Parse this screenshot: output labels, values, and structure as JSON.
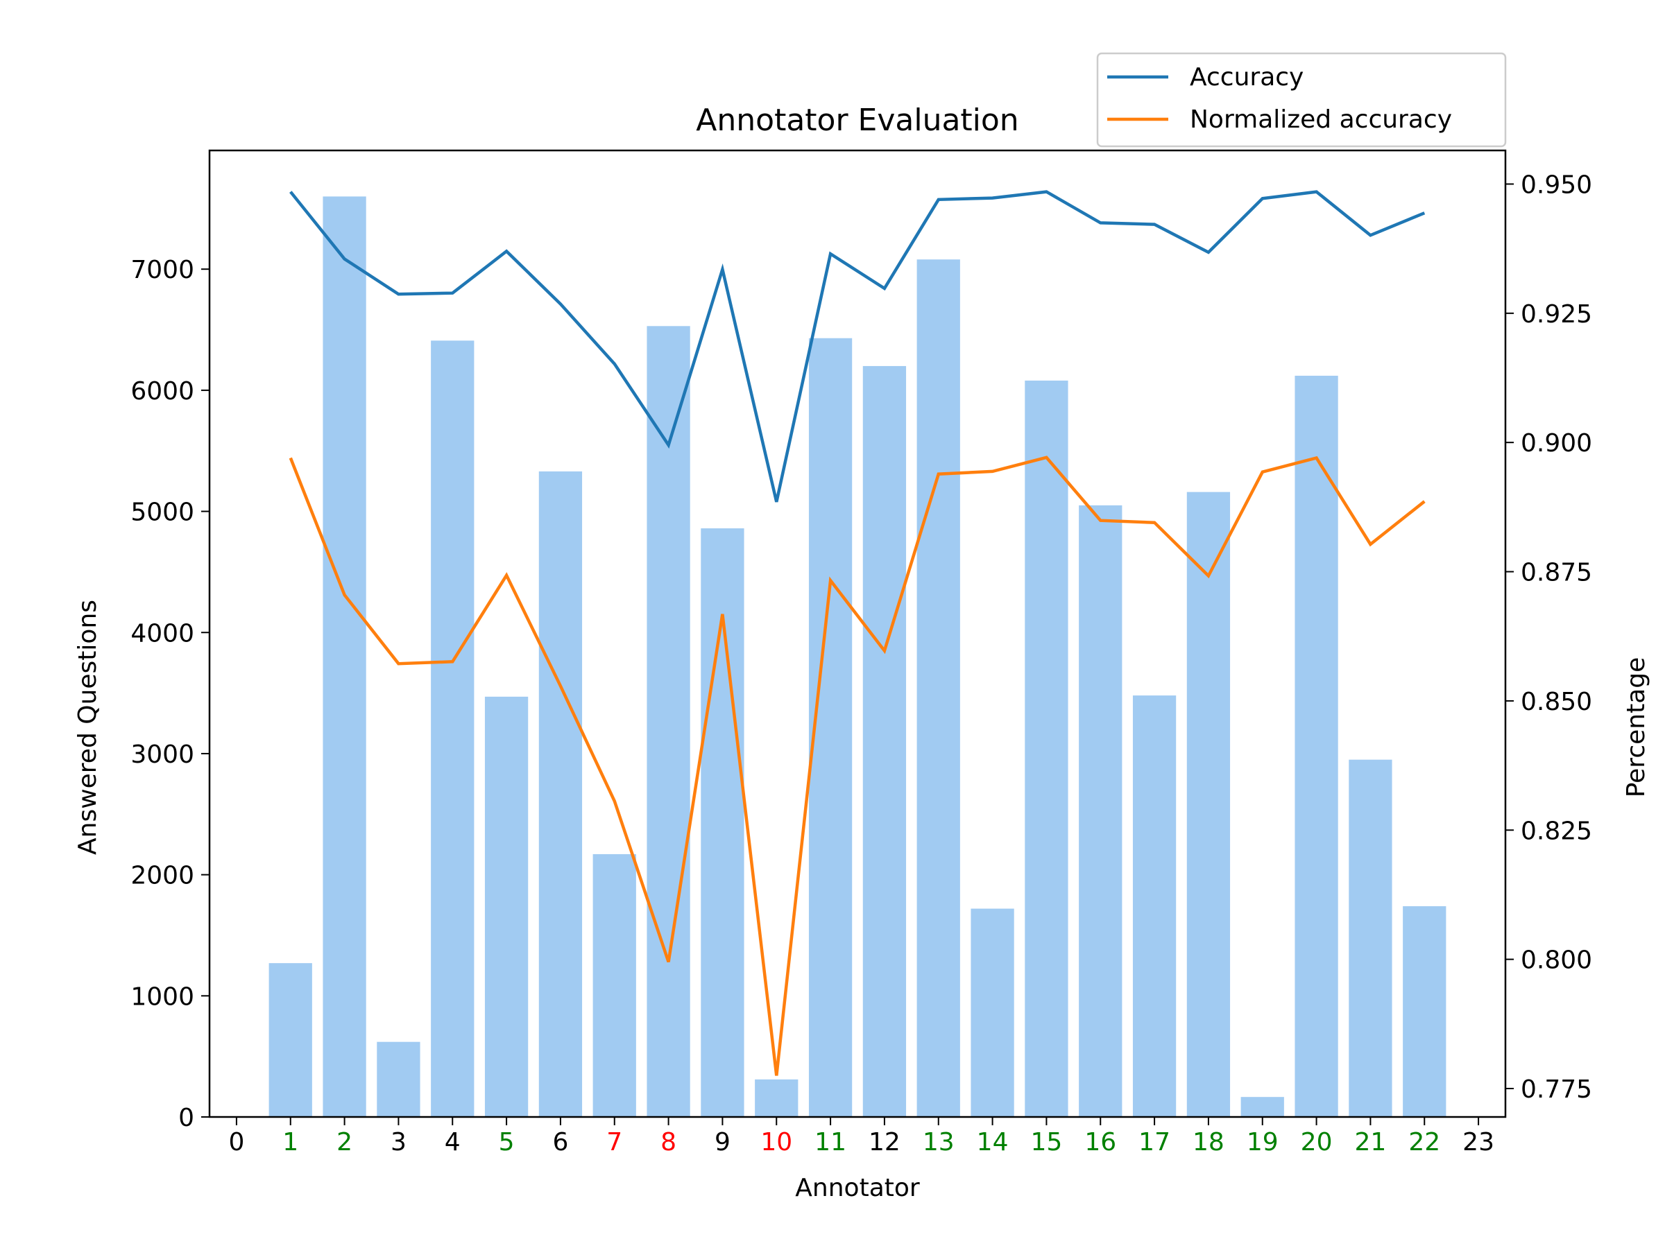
{
  "chart_data": {
    "type": "bar",
    "title": "Annotator Evaluation",
    "xlabel": "Annotator",
    "ylabel": "Answered Questions",
    "y2label": "Percentage",
    "xlim": [
      -0.5,
      23.5
    ],
    "ylim": [
      0,
      7980
    ],
    "y2lim": [
      0.7695,
      0.9565
    ],
    "x_ticks": [
      {
        "label": "0",
        "color": "#000000"
      },
      {
        "label": "1",
        "color": "#008000"
      },
      {
        "label": "2",
        "color": "#008000"
      },
      {
        "label": "3",
        "color": "#000000"
      },
      {
        "label": "4",
        "color": "#000000"
      },
      {
        "label": "5",
        "color": "#008000"
      },
      {
        "label": "6",
        "color": "#000000"
      },
      {
        "label": "7",
        "color": "#ff0000"
      },
      {
        "label": "8",
        "color": "#ff0000"
      },
      {
        "label": "9",
        "color": "#000000"
      },
      {
        "label": "10",
        "color": "#ff0000"
      },
      {
        "label": "11",
        "color": "#008000"
      },
      {
        "label": "12",
        "color": "#000000"
      },
      {
        "label": "13",
        "color": "#008000"
      },
      {
        "label": "14",
        "color": "#008000"
      },
      {
        "label": "15",
        "color": "#008000"
      },
      {
        "label": "16",
        "color": "#008000"
      },
      {
        "label": "17",
        "color": "#008000"
      },
      {
        "label": "18",
        "color": "#008000"
      },
      {
        "label": "19",
        "color": "#008000"
      },
      {
        "label": "20",
        "color": "#008000"
      },
      {
        "label": "21",
        "color": "#008000"
      },
      {
        "label": "22",
        "color": "#008000"
      },
      {
        "label": "23",
        "color": "#000000"
      }
    ],
    "y_ticks": [
      "0",
      "1000",
      "2000",
      "3000",
      "4000",
      "5000",
      "6000",
      "7000"
    ],
    "y2_ticks": [
      "0.775",
      "0.800",
      "0.825",
      "0.850",
      "0.875",
      "0.900",
      "0.925",
      "0.950"
    ],
    "bars": {
      "x": [
        1,
        2,
        3,
        4,
        5,
        6,
        7,
        8,
        9,
        10,
        11,
        12,
        13,
        14,
        15,
        16,
        17,
        18,
        19,
        20,
        21,
        22
      ],
      "values": [
        1270,
        7600,
        620,
        6410,
        3470,
        5330,
        2170,
        6530,
        4860,
        310,
        6430,
        6200,
        7080,
        1720,
        6080,
        5050,
        3480,
        5160,
        165,
        6120,
        2950,
        1740
      ],
      "color": "#a1cbf2"
    },
    "series": [
      {
        "name": "Accuracy",
        "axis": "right",
        "color": "#1f77b4",
        "x": [
          1,
          2,
          3,
          4,
          5,
          6,
          7,
          8,
          9,
          10,
          11,
          12,
          13,
          14,
          15,
          16,
          17,
          18,
          19,
          20,
          21,
          22
        ],
        "values": [
          0.9485,
          0.9355,
          0.9287,
          0.9289,
          0.937,
          0.9268,
          0.9152,
          0.8995,
          0.9335,
          0.8885,
          0.9365,
          0.9298,
          0.947,
          0.9473,
          0.9485,
          0.9425,
          0.9422,
          0.9368,
          0.9472,
          0.9485,
          0.9401,
          0.9444
        ]
      },
      {
        "name": "Normalized accuracy",
        "axis": "right",
        "color": "#ff7f0e",
        "x": [
          1,
          2,
          3,
          4,
          5,
          6,
          7,
          8,
          9,
          10,
          11,
          12,
          13,
          14,
          15,
          16,
          17,
          18,
          19,
          20,
          21,
          22
        ],
        "values": [
          0.897,
          0.8705,
          0.8572,
          0.8576,
          0.8743,
          0.8529,
          0.8306,
          0.7995,
          0.8668,
          0.7775,
          0.8733,
          0.8597,
          0.8939,
          0.8944,
          0.8971,
          0.8849,
          0.8845,
          0.8742,
          0.8943,
          0.897,
          0.8803,
          0.8886
        ]
      }
    ],
    "legend": {
      "position": "top-right",
      "entries": [
        "Accuracy",
        "Normalized accuracy"
      ]
    },
    "grid": false
  }
}
